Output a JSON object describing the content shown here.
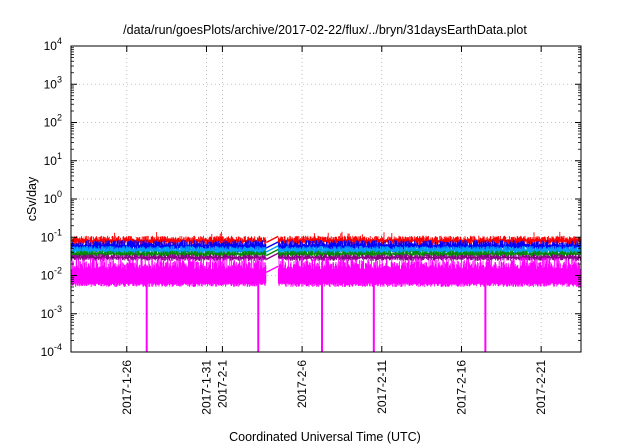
{
  "chart_data": {
    "type": "line",
    "title": "/data/run/goesPlots/archive/2017-02-22/flux/../bryn/31daysEarthData.plot",
    "xlabel": "Coordinated Universal Time (UTC)",
    "ylabel": "cSv/day",
    "yscale": "log",
    "xlim": [
      "2017-01-22T12:00",
      "2017-02-23T12:00"
    ],
    "ylim": [
      0.0001,
      10000
    ],
    "grid": true,
    "y_ticks": [
      {
        "base": "10",
        "exp": "-4",
        "value": 0.0001
      },
      {
        "base": "10",
        "exp": "-3",
        "value": 0.001
      },
      {
        "base": "10",
        "exp": "-2",
        "value": 0.01
      },
      {
        "base": "10",
        "exp": "-1",
        "value": 0.1
      },
      {
        "base": "10",
        "exp": "0",
        "value": 1
      },
      {
        "base": "10",
        "exp": "1",
        "value": 10
      },
      {
        "base": "10",
        "exp": "2",
        "value": 100
      },
      {
        "base": "10",
        "exp": "3",
        "value": 1000
      },
      {
        "base": "10",
        "exp": "4",
        "value": 10000
      }
    ],
    "x_ticks": [
      {
        "label": "2017-1-26",
        "date": "2017-01-26"
      },
      {
        "label": "2017-1-31",
        "date": "2017-01-31"
      },
      {
        "label": "2017-2-1",
        "date": "2017-02-01"
      },
      {
        "label": "2017-2-6",
        "date": "2017-02-06"
      },
      {
        "label": "2017-2-11",
        "date": "2017-02-11"
      },
      {
        "label": "2017-2-16",
        "date": "2017-02-16"
      },
      {
        "label": "2017-2-21",
        "date": "2017-02-21"
      }
    ],
    "data_gap": [
      "2017-02-03T18:00",
      "2017-02-04T12:00"
    ],
    "series": [
      {
        "color": "#ff0000",
        "typical_range": [
          0.06,
          0.11
        ],
        "peak": 0.14
      },
      {
        "color": "#0000ff",
        "typical_range": [
          0.04,
          0.085
        ]
      },
      {
        "color": "#00a0ff",
        "typical_range": [
          0.035,
          0.06
        ]
      },
      {
        "color": "#008b00",
        "typical_range": [
          0.03,
          0.045
        ]
      },
      {
        "color": "#8b008b",
        "typical_range": [
          0.024,
          0.036
        ]
      },
      {
        "color": "#ff00ff",
        "typical_range": [
          0.006,
          0.03
        ],
        "floor": 0.005,
        "dropouts": [
          "2017-01-27T06:00",
          "2017-02-03T06:00",
          "2017-02-07T06:00",
          "2017-02-10T12:00",
          "2017-02-17T12:00"
        ]
      }
    ]
  }
}
